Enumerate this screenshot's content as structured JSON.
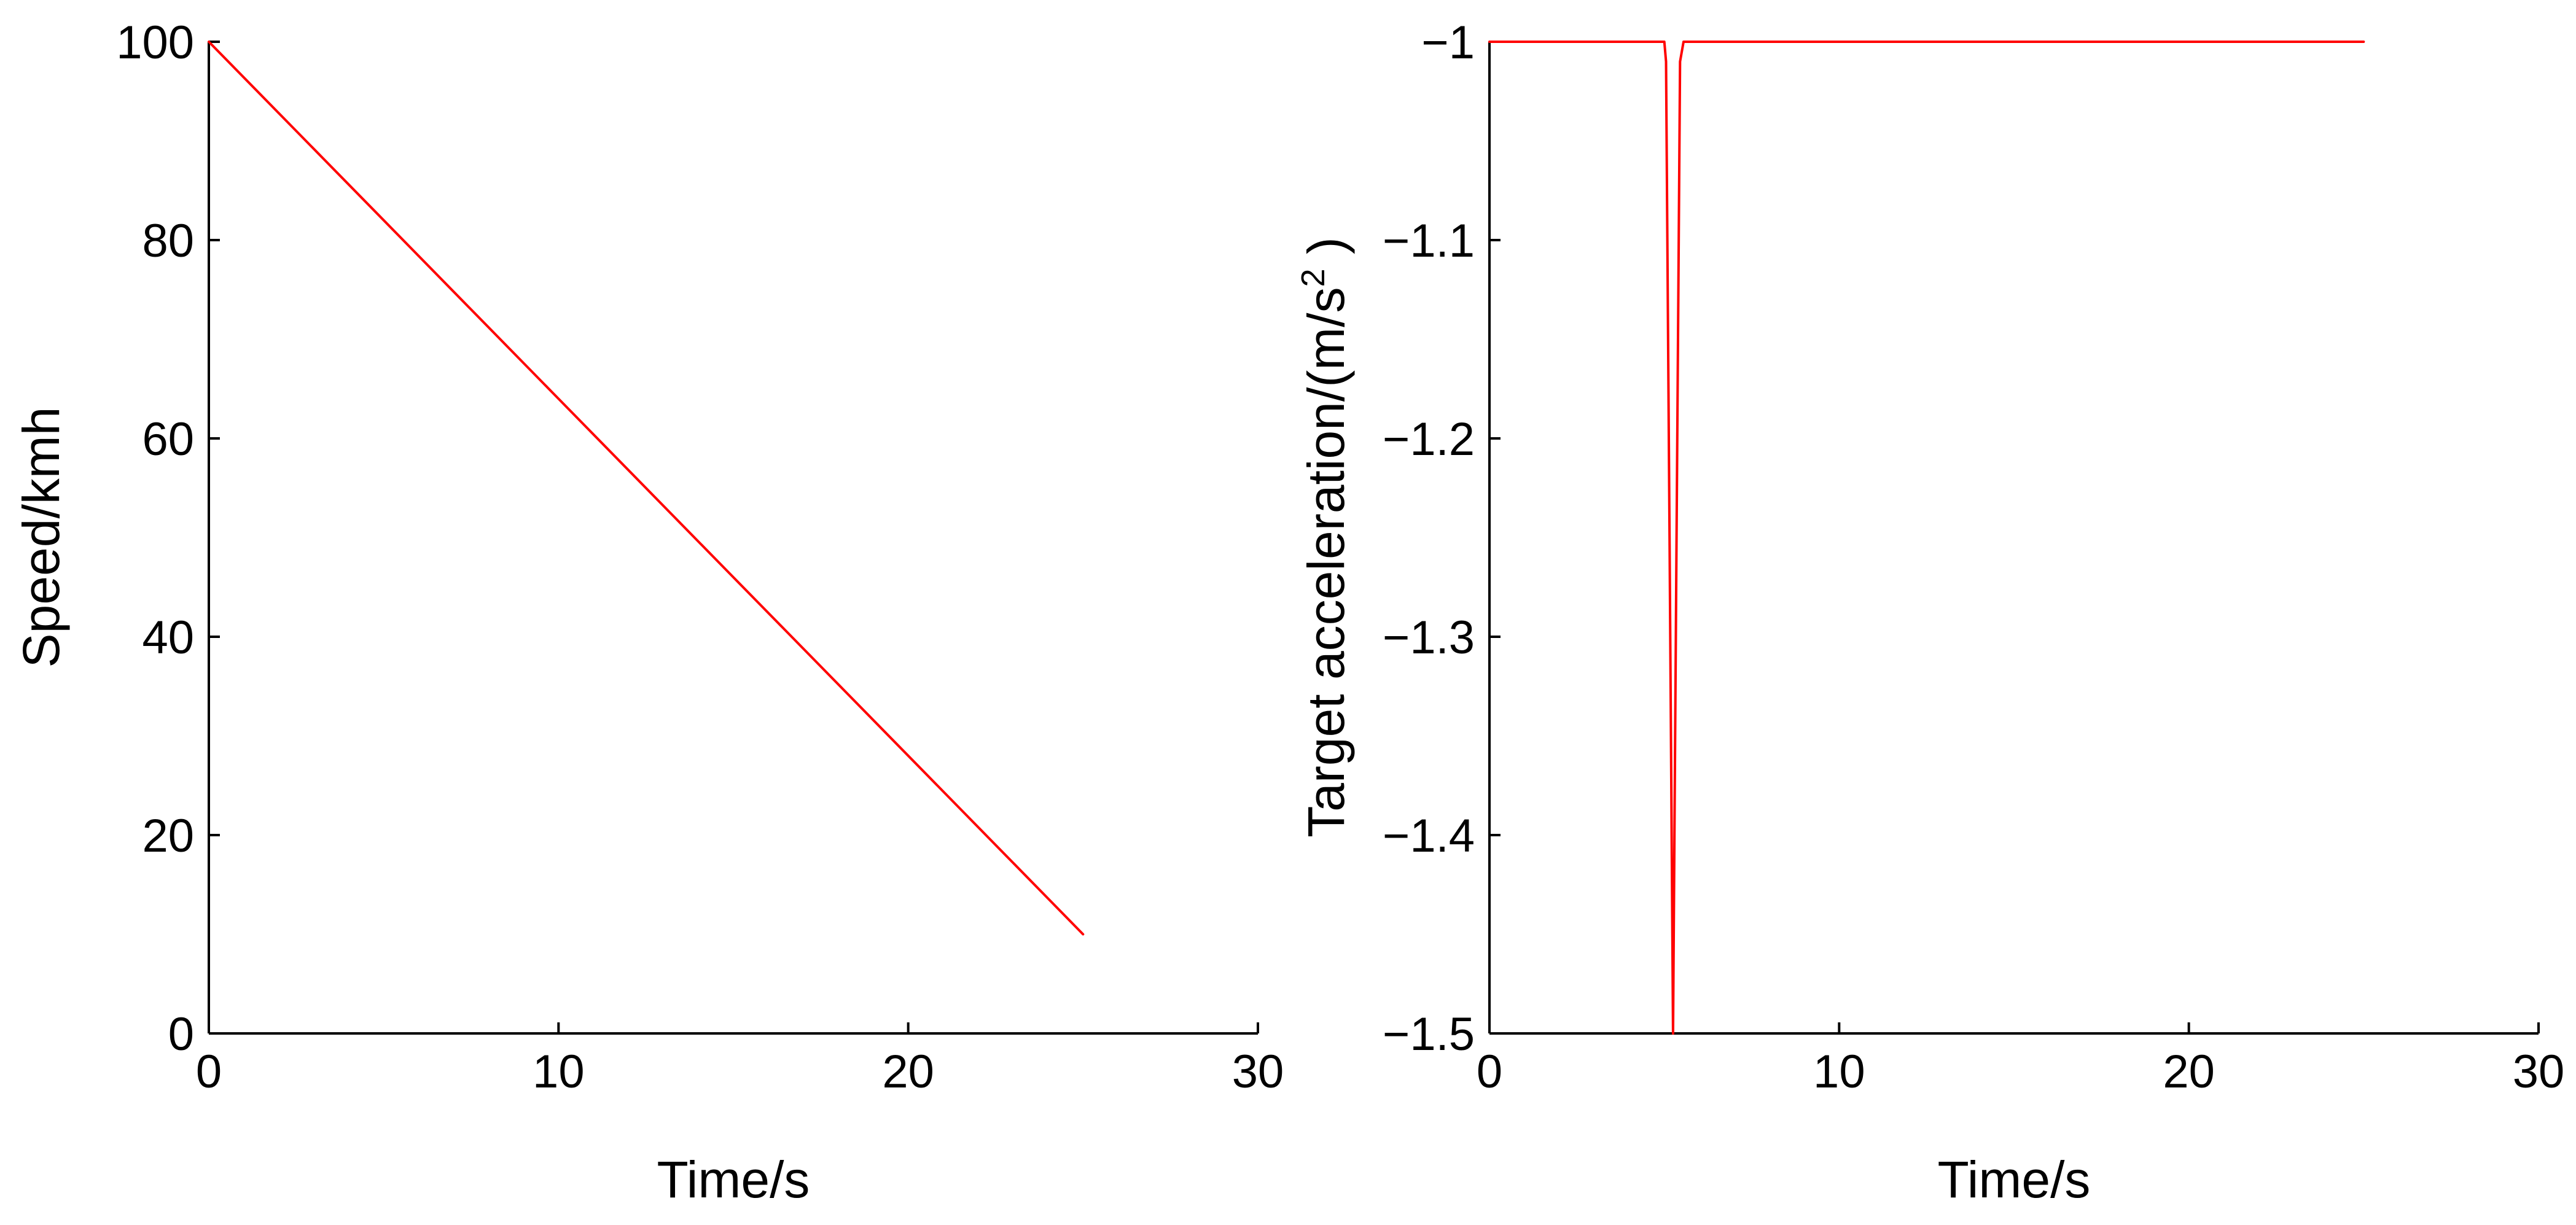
{
  "chart_data": [
    {
      "type": "line",
      "title": "",
      "xlabel": "Time/s",
      "ylabel": "Speed/kmh",
      "xlim": [
        0,
        30
      ],
      "ylim": [
        0,
        100
      ],
      "xticks": [
        0,
        10,
        20,
        30
      ],
      "yticks": [
        0,
        20,
        40,
        60,
        80,
        100
      ],
      "xtick_labels": [
        "0",
        "10",
        "20",
        "30"
      ],
      "ytick_labels": [
        "0",
        "20",
        "40",
        "60",
        "80",
        "100"
      ],
      "grid": false,
      "legend": "none",
      "series": [
        {
          "color": "#ff0000",
          "points": [
            [
              0,
              100
            ],
            [
              5,
              82
            ],
            [
              10,
              64
            ],
            [
              15,
              46
            ],
            [
              20,
              28
            ],
            [
              25,
              10
            ]
          ]
        }
      ]
    },
    {
      "type": "line",
      "title": "",
      "xlabel": "Time/s",
      "ylabel": "Target acceleration/(m/s",
      "ylabel_superscript": "2",
      "ylabel_suffix": " )",
      "xlim": [
        0,
        30
      ],
      "ylim": [
        -1.5,
        -1
      ],
      "xticks": [
        0,
        10,
        20,
        30
      ],
      "yticks": [
        -1,
        -1.1,
        -1.2,
        -1.3,
        -1.4,
        -1.5
      ],
      "xtick_labels": [
        "0",
        "10",
        "20",
        "30"
      ],
      "ytick_labels": [
        "−1",
        "−1.1",
        "−1.2",
        "−1.3",
        "−1.4",
        "−1.5"
      ],
      "grid": false,
      "legend": "none",
      "series": [
        {
          "color": "#ff0000",
          "points": [
            [
              0,
              -1
            ],
            [
              5,
              -1
            ],
            [
              5.05,
              -1.01
            ],
            [
              5.15,
              -1.25
            ],
            [
              5.25,
              -1.5
            ],
            [
              5.35,
              -1.25
            ],
            [
              5.45,
              -1.01
            ],
            [
              5.55,
              -1
            ],
            [
              25,
              -1
            ]
          ]
        }
      ]
    }
  ]
}
